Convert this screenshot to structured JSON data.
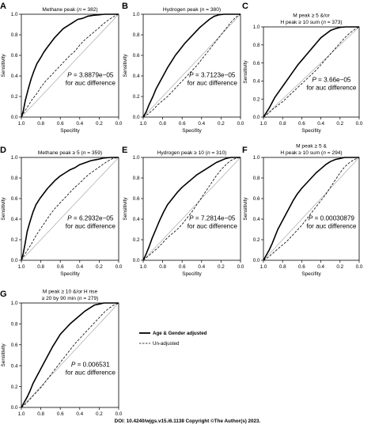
{
  "figure": {
    "doi_text": "DOI: 10.4240/wjgs.v15.i6.1138 Copyright ©The Author(s) 2023.",
    "legend": [
      {
        "label": "Age & Gender adjusted",
        "style": "solid-thick"
      },
      {
        "label": "Un-adjusted",
        "style": "dashed"
      }
    ],
    "colors": {
      "adjusted": "#000000",
      "unadjusted": "#000000",
      "reference": "#aaaaaa"
    }
  },
  "chart_data": [
    {
      "type": "line",
      "panel": "A",
      "title_lines": [
        "Methane peak (",
        "n",
        " = 382)"
      ],
      "xlabel": "Specifity",
      "ylabel": "Sensitivity",
      "xlim": [
        1.0,
        0.0
      ],
      "ylim": [
        0.0,
        1.0
      ],
      "xticks": [
        "1.0",
        "0.8",
        "0.6",
        "0.4",
        "0.2",
        "0.0"
      ],
      "yticks": [
        "0.0",
        "0.2",
        "0.4",
        "0.6",
        "0.8",
        "1.0"
      ],
      "annotation": {
        "p_label": "P",
        "p_value": " = 3.8879e−05",
        "line2": "for auc difference"
      },
      "series": [
        {
          "name": "Age & Gender adjusted",
          "x": [
            1.0,
            0.98,
            0.96,
            0.93,
            0.9,
            0.87,
            0.84,
            0.8,
            0.77,
            0.74,
            0.7,
            0.66,
            0.62,
            0.57,
            0.52,
            0.47,
            0.42,
            0.37,
            0.32,
            0.26,
            0.2,
            0.14,
            0.08,
            0.03,
            0.0
          ],
          "y": [
            0.0,
            0.06,
            0.16,
            0.27,
            0.37,
            0.45,
            0.52,
            0.58,
            0.63,
            0.67,
            0.72,
            0.77,
            0.81,
            0.86,
            0.89,
            0.92,
            0.95,
            0.96,
            0.98,
            0.99,
            0.995,
            1.0,
            1.0,
            1.0,
            1.0
          ]
        },
        {
          "name": "Un-adjusted",
          "x": [
            1.0,
            0.97,
            0.93,
            0.89,
            0.84,
            0.8,
            0.75,
            0.7,
            0.65,
            0.6,
            0.55,
            0.5,
            0.45,
            0.4,
            0.35,
            0.3,
            0.25,
            0.2,
            0.14,
            0.08,
            0.03,
            0.0
          ],
          "y": [
            0.0,
            0.05,
            0.11,
            0.17,
            0.23,
            0.29,
            0.35,
            0.4,
            0.45,
            0.5,
            0.55,
            0.6,
            0.64,
            0.7,
            0.75,
            0.79,
            0.83,
            0.87,
            0.92,
            0.96,
            0.99,
            1.0
          ]
        }
      ]
    },
    {
      "type": "line",
      "panel": "B",
      "title_lines": [
        "Hydrogen peak (",
        "n",
        " = 380)"
      ],
      "xlabel": "Specifity",
      "ylabel": "Sensitivity",
      "xlim": [
        1.0,
        0.0
      ],
      "ylim": [
        0.0,
        1.0
      ],
      "xticks": [
        "1.0",
        "0.8",
        "0.6",
        "0.4",
        "0.2",
        "0.0"
      ],
      "yticks": [
        "0.0",
        "0.2",
        "0.4",
        "0.6",
        "0.8",
        "1.0"
      ],
      "annotation": {
        "p_label": "P",
        "p_value": " = 3.7123e−05",
        "line2": "for auc difference"
      },
      "series": [
        {
          "name": "Age & Gender adjusted",
          "x": [
            1.0,
            0.97,
            0.94,
            0.9,
            0.87,
            0.83,
            0.79,
            0.75,
            0.71,
            0.67,
            0.62,
            0.57,
            0.52,
            0.47,
            0.42,
            0.37,
            0.32,
            0.27,
            0.22,
            0.17,
            0.12,
            0.06,
            0.0
          ],
          "y": [
            0.0,
            0.05,
            0.12,
            0.2,
            0.27,
            0.34,
            0.41,
            0.48,
            0.54,
            0.6,
            0.66,
            0.72,
            0.77,
            0.82,
            0.87,
            0.91,
            0.95,
            0.98,
            0.995,
            1.0,
            1.0,
            1.0,
            1.0
          ]
        },
        {
          "name": "Un-adjusted",
          "x": [
            1.0,
            0.95,
            0.9,
            0.85,
            0.8,
            0.75,
            0.7,
            0.65,
            0.6,
            0.55,
            0.5,
            0.45,
            0.4,
            0.35,
            0.3,
            0.25,
            0.2,
            0.15,
            0.1,
            0.05,
            0.0
          ],
          "y": [
            0.0,
            0.03,
            0.07,
            0.12,
            0.16,
            0.2,
            0.25,
            0.3,
            0.35,
            0.4,
            0.45,
            0.5,
            0.56,
            0.62,
            0.68,
            0.74,
            0.8,
            0.86,
            0.92,
            0.97,
            1.0
          ]
        }
      ]
    },
    {
      "type": "line",
      "panel": "C",
      "title_lines": [
        "M peak ≥ 5 &/or",
        "H peak ≥ 10 sum (",
        "n",
        " = 373)"
      ],
      "xlabel": "Specifity",
      "ylabel": "Sensitivity",
      "xlim": [
        1.0,
        0.0
      ],
      "ylim": [
        0.0,
        1.0
      ],
      "xticks": [
        "1.0",
        "0.8",
        "0.6",
        "0.4",
        "0.2",
        "0.0"
      ],
      "yticks": [
        "0.0",
        "0.2",
        "0.4",
        "0.6",
        "0.8",
        "1.0"
      ],
      "annotation": {
        "p_label": "P",
        "p_value": " = 3.66e−05",
        "line2": "for auc difference"
      },
      "series": [
        {
          "name": "Age & Gender adjusted",
          "x": [
            1.0,
            0.97,
            0.94,
            0.91,
            0.88,
            0.84,
            0.8,
            0.76,
            0.72,
            0.68,
            0.64,
            0.6,
            0.56,
            0.52,
            0.48,
            0.44,
            0.4,
            0.35,
            0.3,
            0.25,
            0.2,
            0.14,
            0.08,
            0.0
          ],
          "y": [
            0.0,
            0.05,
            0.1,
            0.16,
            0.22,
            0.28,
            0.34,
            0.4,
            0.46,
            0.52,
            0.58,
            0.63,
            0.68,
            0.73,
            0.78,
            0.83,
            0.88,
            0.92,
            0.96,
            0.98,
            0.995,
            1.0,
            1.0,
            1.0
          ]
        },
        {
          "name": "Un-adjusted",
          "x": [
            1.0,
            0.95,
            0.9,
            0.85,
            0.8,
            0.75,
            0.7,
            0.65,
            0.6,
            0.55,
            0.5,
            0.45,
            0.4,
            0.35,
            0.3,
            0.25,
            0.2,
            0.15,
            0.1,
            0.05,
            0.0
          ],
          "y": [
            0.0,
            0.04,
            0.09,
            0.13,
            0.17,
            0.22,
            0.27,
            0.32,
            0.37,
            0.42,
            0.47,
            0.52,
            0.58,
            0.64,
            0.7,
            0.76,
            0.82,
            0.88,
            0.93,
            0.97,
            1.0
          ]
        }
      ]
    },
    {
      "type": "line",
      "panel": "D",
      "title_lines": [
        "Methane peak ≥ 5 (",
        "n",
        " = 359)"
      ],
      "xlabel": "Specifity",
      "ylabel": "Sensitivity",
      "xlim": [
        1.0,
        0.0
      ],
      "ylim": [
        0.0,
        1.0
      ],
      "xticks": [
        "1.0",
        "0.8",
        "0.6",
        "0.4",
        "0.2",
        "0.0"
      ],
      "yticks": [
        "0.0",
        "0.2",
        "0.4",
        "0.6",
        "0.8",
        "1.0"
      ],
      "annotation": {
        "p_label": "P",
        "p_value": " = 6.2932e−05",
        "line2": "for auc difference"
      },
      "series": [
        {
          "name": "Age & Gender adjusted",
          "x": [
            1.0,
            0.98,
            0.96,
            0.94,
            0.91,
            0.88,
            0.85,
            0.81,
            0.77,
            0.73,
            0.69,
            0.65,
            0.6,
            0.55,
            0.5,
            0.45,
            0.4,
            0.34,
            0.28,
            0.22,
            0.15,
            0.08,
            0.0
          ],
          "y": [
            0.0,
            0.07,
            0.17,
            0.28,
            0.38,
            0.47,
            0.54,
            0.6,
            0.65,
            0.7,
            0.74,
            0.78,
            0.82,
            0.85,
            0.88,
            0.9,
            0.93,
            0.95,
            0.97,
            0.98,
            0.995,
            1.0,
            1.0
          ]
        },
        {
          "name": "Un-adjusted",
          "x": [
            1.0,
            0.97,
            0.93,
            0.89,
            0.85,
            0.8,
            0.75,
            0.7,
            0.65,
            0.6,
            0.55,
            0.5,
            0.45,
            0.4,
            0.35,
            0.3,
            0.24,
            0.18,
            0.12,
            0.06,
            0.0
          ],
          "y": [
            0.0,
            0.05,
            0.11,
            0.17,
            0.24,
            0.31,
            0.38,
            0.45,
            0.51,
            0.56,
            0.61,
            0.66,
            0.71,
            0.75,
            0.8,
            0.84,
            0.88,
            0.92,
            0.96,
            0.99,
            1.0
          ]
        }
      ]
    },
    {
      "type": "line",
      "panel": "E",
      "title_lines": [
        "Hydrogen peak ≥ 10 (",
        "n",
        " = 310)"
      ],
      "xlabel": "Specifity",
      "ylabel": "Sensitivity",
      "xlim": [
        1.0,
        0.0
      ],
      "ylim": [
        0.0,
        1.0
      ],
      "xticks": [
        "1.0",
        "0.8",
        "0.6",
        "0.4",
        "0.2",
        "0.0"
      ],
      "yticks": [
        "0.0",
        "0.2",
        "0.4",
        "0.6",
        "0.8",
        "1.0"
      ],
      "annotation": {
        "p_label": "P",
        "p_value": " = 7.2814e−05",
        "line2": "for auc difference"
      },
      "series": [
        {
          "name": "Age & Gender adjusted",
          "x": [
            1.0,
            0.97,
            0.94,
            0.91,
            0.87,
            0.83,
            0.79,
            0.75,
            0.7,
            0.65,
            0.6,
            0.55,
            0.5,
            0.45,
            0.4,
            0.35,
            0.3,
            0.25,
            0.2,
            0.15,
            0.1,
            0.05,
            0.0
          ],
          "y": [
            0.0,
            0.06,
            0.13,
            0.21,
            0.3,
            0.39,
            0.47,
            0.54,
            0.6,
            0.66,
            0.71,
            0.75,
            0.79,
            0.83,
            0.86,
            0.89,
            0.92,
            0.95,
            0.97,
            0.99,
            1.0,
            1.0,
            1.0
          ]
        },
        {
          "name": "Un-adjusted",
          "x": [
            1.0,
            0.95,
            0.9,
            0.85,
            0.8,
            0.75,
            0.7,
            0.65,
            0.6,
            0.55,
            0.5,
            0.45,
            0.4,
            0.35,
            0.3,
            0.25,
            0.2,
            0.15,
            0.1,
            0.05,
            0.0
          ],
          "y": [
            0.0,
            0.04,
            0.08,
            0.12,
            0.17,
            0.22,
            0.26,
            0.3,
            0.35,
            0.41,
            0.47,
            0.54,
            0.61,
            0.68,
            0.75,
            0.82,
            0.88,
            0.93,
            0.97,
            0.99,
            1.0
          ]
        }
      ]
    },
    {
      "type": "line",
      "panel": "F",
      "title_lines": [
        "M peak ≥ 5 &",
        "H peak ≥ 10 sum (",
        "n",
        " = 294)"
      ],
      "xlabel": "Specifity",
      "ylabel": "Sensitivity",
      "xlim": [
        1.0,
        0.0
      ],
      "ylim": [
        0.0,
        1.0
      ],
      "xticks": [
        "1.0",
        "0.8",
        "0.6",
        "0.4",
        "0.2",
        "0.0"
      ],
      "yticks": [
        "0.0",
        "0.2",
        "0.4",
        "0.6",
        "0.8",
        "1.0"
      ],
      "annotation": {
        "p_label": "P",
        "p_value": " = 0.00030879",
        "line2": "for auc difference"
      },
      "series": [
        {
          "name": "Age & Gender adjusted",
          "x": [
            1.0,
            0.97,
            0.94,
            0.91,
            0.88,
            0.85,
            0.81,
            0.77,
            0.73,
            0.69,
            0.65,
            0.6,
            0.55,
            0.5,
            0.45,
            0.4,
            0.35,
            0.3,
            0.25,
            0.2,
            0.15,
            0.1,
            0.05,
            0.0
          ],
          "y": [
            0.0,
            0.05,
            0.1,
            0.16,
            0.23,
            0.3,
            0.37,
            0.44,
            0.51,
            0.58,
            0.64,
            0.7,
            0.75,
            0.8,
            0.85,
            0.89,
            0.93,
            0.96,
            0.98,
            0.99,
            1.0,
            1.0,
            1.0,
            1.0
          ]
        },
        {
          "name": "Un-adjusted",
          "x": [
            1.0,
            0.95,
            0.9,
            0.85,
            0.8,
            0.75,
            0.7,
            0.65,
            0.6,
            0.55,
            0.5,
            0.45,
            0.4,
            0.35,
            0.3,
            0.25,
            0.2,
            0.15,
            0.1,
            0.05,
            0.0
          ],
          "y": [
            0.0,
            0.03,
            0.07,
            0.11,
            0.15,
            0.19,
            0.24,
            0.29,
            0.34,
            0.4,
            0.46,
            0.52,
            0.58,
            0.64,
            0.71,
            0.78,
            0.85,
            0.91,
            0.95,
            0.98,
            1.0
          ]
        }
      ]
    },
    {
      "type": "line",
      "panel": "G",
      "title_lines": [
        "M peak ≥ 10 &/or H rise",
        "≥ 20 by 90 min (",
        "n",
        " = 279)"
      ],
      "xlabel": "Specifity",
      "ylabel": "Sensitivity",
      "xlim": [
        1.0,
        0.0
      ],
      "ylim": [
        0.0,
        1.0
      ],
      "xticks": [
        "1.0",
        "0.8",
        "0.6",
        "0.4",
        "0.2",
        "0.0"
      ],
      "yticks": [
        "0.0",
        "0.2",
        "0.4",
        "0.6",
        "0.8",
        "1.0"
      ],
      "annotation": {
        "p_label": "P",
        "p_value": " = 0.006531",
        "line2": "for auc difference"
      },
      "series": [
        {
          "name": "Age & Gender adjusted",
          "x": [
            1.0,
            0.97,
            0.94,
            0.91,
            0.88,
            0.84,
            0.8,
            0.76,
            0.72,
            0.68,
            0.64,
            0.6,
            0.55,
            0.5,
            0.45,
            0.4,
            0.35,
            0.3,
            0.25,
            0.2,
            0.15,
            0.1,
            0.05,
            0.0
          ],
          "y": [
            0.0,
            0.05,
            0.1,
            0.16,
            0.23,
            0.3,
            0.37,
            0.44,
            0.51,
            0.58,
            0.64,
            0.7,
            0.75,
            0.8,
            0.84,
            0.88,
            0.92,
            0.95,
            0.98,
            0.99,
            1.0,
            1.0,
            1.0,
            1.0
          ]
        },
        {
          "name": "Un-adjusted",
          "x": [
            1.0,
            0.95,
            0.9,
            0.85,
            0.8,
            0.75,
            0.7,
            0.65,
            0.6,
            0.55,
            0.5,
            0.45,
            0.4,
            0.35,
            0.3,
            0.25,
            0.2,
            0.15,
            0.1,
            0.05,
            0.0
          ],
          "y": [
            0.0,
            0.04,
            0.09,
            0.14,
            0.19,
            0.25,
            0.31,
            0.37,
            0.43,
            0.49,
            0.55,
            0.61,
            0.66,
            0.71,
            0.76,
            0.81,
            0.86,
            0.91,
            0.95,
            0.98,
            1.0
          ]
        }
      ]
    }
  ]
}
